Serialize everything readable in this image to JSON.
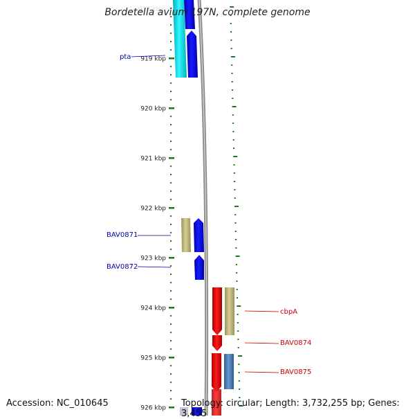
{
  "title": "Bordetella avium 197N, complete genome",
  "footer": {
    "accession": "Accession: NC_010645",
    "topology": "Topology: circular; Length: 3,732,255 bp; Genes: 3,455"
  },
  "ticks": [
    {
      "kbp": 919,
      "label": "919 kbp"
    },
    {
      "kbp": 920,
      "label": "920 kbp"
    },
    {
      "kbp": 921,
      "label": "921 kbp"
    },
    {
      "kbp": 922,
      "label": "922 kbp"
    },
    {
      "kbp": 923,
      "label": "923 kbp"
    },
    {
      "kbp": 924,
      "label": "924 kbp"
    },
    {
      "kbp": 925,
      "label": "925 kbp"
    },
    {
      "kbp": 926,
      "label": "926 kbp"
    }
  ],
  "labels": {
    "pta": "pta",
    "BAV0871": "BAV0871",
    "BAV0872": "BAV0872",
    "cbpA": "cbpA",
    "BAV0874": "BAV0874",
    "BAV0875": "BAV0875"
  },
  "colors": {
    "forward_gene": "#0000ee",
    "reverse_gene": "#ee0000",
    "cds_tan": "#c2b87a",
    "cds_cyan": "#00e5ee",
    "cds_steel": "#4a7ab0",
    "backbone": "#888888",
    "tick": "#1a7a1a",
    "label_left": "#0000aa",
    "label_right": "#cc0000"
  }
}
